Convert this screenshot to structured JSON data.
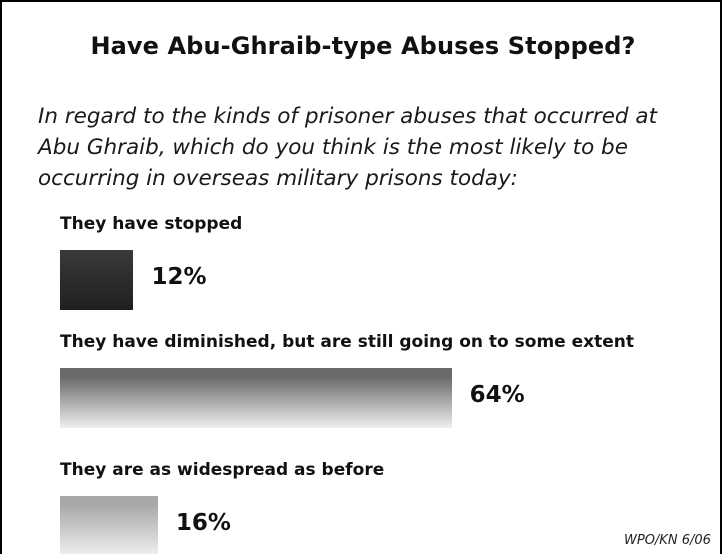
{
  "chart_data": {
    "type": "bar",
    "orientation": "horizontal",
    "title": "Have Abu-Ghraib-type Abuses Stopped?",
    "subtitle": "In regard to the kinds of prisoner abuses that occurred at Abu Ghraib, which do you think is the most likely to be occurring in overseas military prisons today:",
    "categories": [
      "They have stopped",
      "They have diminished, but are still going on to some extent",
      "They are as widespread as before"
    ],
    "values": [
      12,
      64,
      16
    ],
    "value_labels": [
      "12%",
      "64%",
      "16%"
    ],
    "unit": "%",
    "bar_colors": [
      "#2b2b2b",
      "#6a6a6a",
      "#a8a8a8"
    ],
    "source": "WPO/KN 6/06"
  }
}
